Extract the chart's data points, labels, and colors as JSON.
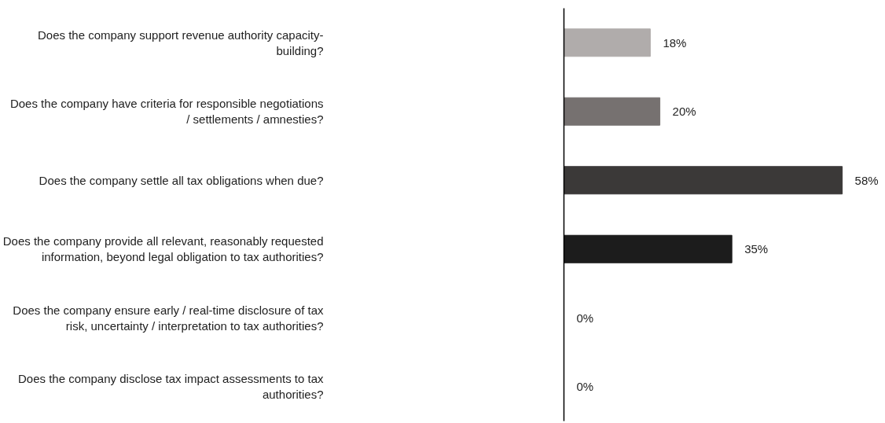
{
  "chart_data": {
    "type": "bar",
    "orientation": "horizontal",
    "categories": [
      "Does the company support revenue authority capacity-building?",
      "Does the company have criteria for responsible negotiations / settlements / amnesties?",
      "Does the company settle all tax obligations when due?",
      "Does the company provide all relevant, reasonably requested information, beyond legal obligation to tax authorities?",
      "Does the company ensure early / real-time disclosure of tax risk, uncertainty / interpretation to tax authorities?",
      "Does the company disclose tax impact assessments to tax authorities?"
    ],
    "values": [
      18,
      20,
      58,
      35,
      0,
      0
    ],
    "value_labels": [
      "18%",
      "20%",
      "58%",
      "35%",
      "0%",
      "0%"
    ],
    "colors": [
      "#b0acab",
      "#767170",
      "#3b3938",
      "#1c1c1c",
      "#1c1c1c",
      "#1c1c1c"
    ],
    "grid": false
  }
}
